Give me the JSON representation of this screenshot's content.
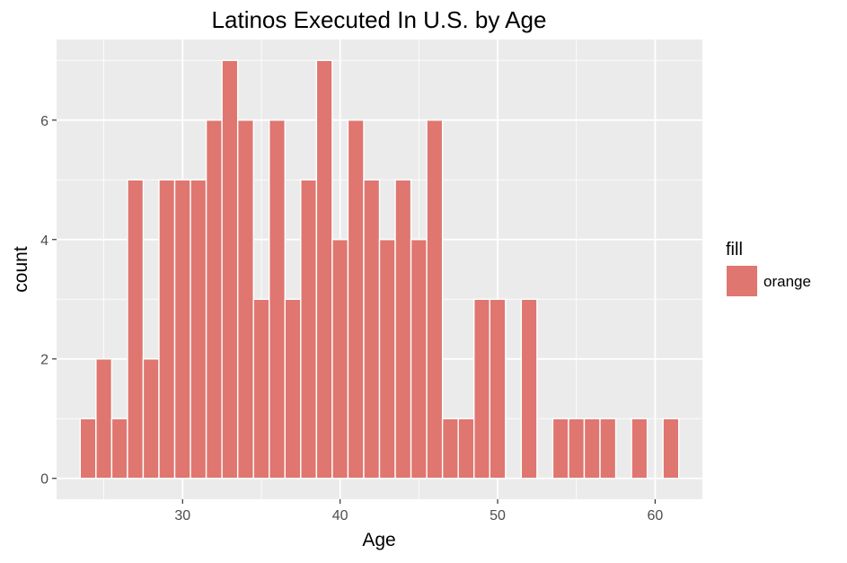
{
  "chart_data": {
    "type": "bar",
    "title": "Latinos Executed In U.S. by Age",
    "xlabel": "Age",
    "ylabel": "count",
    "xlim": [
      22,
      63
    ],
    "ylim": [
      -0.35,
      7.35
    ],
    "xticks": [
      30,
      40,
      50,
      60
    ],
    "yticks": [
      0,
      2,
      4,
      6
    ],
    "grid": true,
    "legend": {
      "title": "fill",
      "position": "right",
      "entries": [
        {
          "label": "orange",
          "color": "#df7670"
        }
      ]
    },
    "colors": {
      "bar": "#df7670",
      "panel": "#ebebeb",
      "grid": "#ffffff"
    },
    "x": [
      24,
      25,
      26,
      27,
      28,
      29,
      30,
      31,
      32,
      33,
      34,
      35,
      36,
      37,
      38,
      39,
      40,
      41,
      42,
      43,
      44,
      45,
      46,
      47,
      48,
      49,
      50,
      51,
      52,
      53,
      54,
      55,
      56,
      57,
      58,
      59,
      60,
      61
    ],
    "values": [
      1,
      2,
      1,
      5,
      2,
      5,
      5,
      5,
      6,
      7,
      6,
      3,
      6,
      3,
      5,
      7,
      4,
      6,
      5,
      4,
      5,
      4,
      6,
      1,
      1,
      3,
      3,
      0,
      3,
      0,
      1,
      1,
      1,
      1,
      0,
      1,
      0,
      1
    ]
  }
}
